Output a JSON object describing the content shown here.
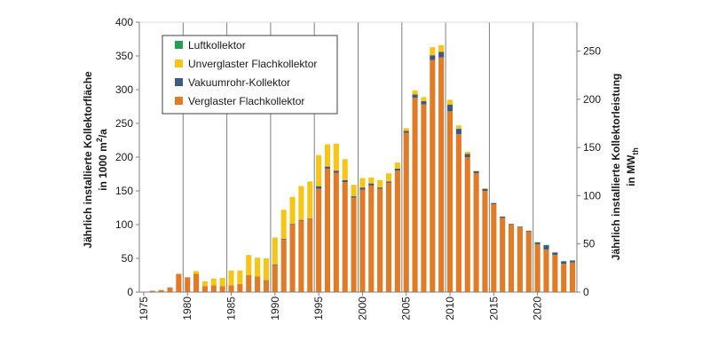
{
  "chart_data": {
    "type": "bar",
    "stacked": true,
    "x": [
      1975,
      1976,
      1977,
      1978,
      1979,
      1980,
      1981,
      1982,
      1983,
      1984,
      1985,
      1986,
      1987,
      1988,
      1989,
      1990,
      1991,
      1992,
      1993,
      1994,
      1995,
      1996,
      1997,
      1998,
      1999,
      2000,
      2001,
      2002,
      2003,
      2004,
      2005,
      2006,
      2007,
      2008,
      2009,
      2010,
      2011,
      2012,
      2013,
      2014,
      2015,
      2016,
      2017,
      2018,
      2019,
      2020,
      2021,
      2022,
      2023,
      2024
    ],
    "series": [
      {
        "name": "Verglaster Flachkollektor",
        "color": "#e07b28",
        "values": [
          0,
          2,
          3,
          7,
          27,
          22,
          27,
          9,
          10,
          9,
          10,
          12,
          25,
          23,
          18,
          40,
          78,
          100,
          106,
          108,
          153,
          183,
          177,
          163,
          140,
          152,
          158,
          153,
          162,
          180,
          236,
          288,
          278,
          344,
          348,
          268,
          234,
          200,
          176,
          150,
          130,
          110,
          100,
          96,
          90,
          71,
          63,
          55,
          42,
          44
        ]
      },
      {
        "name": "Vakuumrohr-Kollektor",
        "color": "#3d5a80",
        "values": [
          0,
          0,
          0,
          0,
          0,
          0,
          0,
          0,
          0,
          0,
          0,
          0,
          0,
          0,
          0,
          1,
          1,
          1,
          1,
          1,
          4,
          3,
          3,
          3,
          2,
          3,
          3,
          2,
          2,
          3,
          3,
          5,
          5,
          7,
          8,
          10,
          8,
          5,
          3,
          3,
          2,
          2,
          1,
          1,
          1,
          2,
          6,
          3,
          3,
          2
        ]
      },
      {
        "name": "Unverglaster Flachkollektor",
        "color": "#f5c518",
        "values": [
          0,
          0,
          0,
          0,
          0,
          0,
          4,
          7,
          10,
          12,
          22,
          20,
          30,
          28,
          32,
          40,
          43,
          40,
          50,
          55,
          46,
          33,
          40,
          31,
          17,
          14,
          9,
          11,
          12,
          9,
          4,
          6,
          6,
          12,
          10,
          7,
          5,
          3,
          1,
          1,
          0,
          0,
          0,
          0,
          0,
          0,
          0,
          0,
          0,
          0
        ]
      },
      {
        "name": "Luftkollektor",
        "color": "#22a050",
        "values": [
          0,
          0,
          0,
          0,
          0,
          0,
          0,
          0,
          0,
          0,
          0,
          0,
          0,
          0,
          0,
          0,
          0,
          0,
          0,
          0,
          0,
          0,
          0,
          0,
          0,
          0,
          0,
          0,
          0,
          0,
          0,
          0,
          0,
          0,
          0,
          0,
          0,
          0,
          0,
          0,
          0,
          0,
          0,
          0,
          0,
          1,
          1,
          1,
          1,
          1
        ]
      }
    ],
    "legend_order": [
      "Luftkollektor",
      "Unverglaster Flachkollektor",
      "Vakuumrohr-Kollektor",
      "Verglaster Flachkollektor"
    ],
    "xticks": [
      "1975",
      "1980",
      "1985",
      "1990",
      "1995",
      "2000",
      "2005",
      "2010",
      "2015",
      "2020"
    ],
    "xtick_values": [
      1975,
      1980,
      1985,
      1990,
      1995,
      2000,
      2005,
      2010,
      2015,
      2020
    ],
    "ylim": [
      0,
      400
    ],
    "yticks": [
      "0",
      "50",
      "100",
      "150",
      "200",
      "250",
      "300",
      "350",
      "400"
    ],
    "ytick_values": [
      0,
      50,
      100,
      150,
      200,
      250,
      300,
      350,
      400
    ],
    "y2lim": [
      0,
      280
    ],
    "y2ticks": [
      "0",
      "50",
      "100",
      "150",
      "200",
      "250"
    ],
    "y2tick_values": [
      0,
      50,
      100,
      150,
      200,
      250
    ],
    "ylabel_line1": "Jährlich installierte Kollektorfläche",
    "ylabel_line2_prefix": "in 1000 m",
    "ylabel_line2_sup": "2",
    "ylabel_line2_suffix": "/a",
    "y2label_line1": "Jährlich installierte Kollektorleistung",
    "y2label_line2_prefix": "in MW",
    "y2label_line2_sub": "th",
    "legend_position": "top-left",
    "grid": "vertical",
    "grid_color": "#7f7f7f"
  }
}
